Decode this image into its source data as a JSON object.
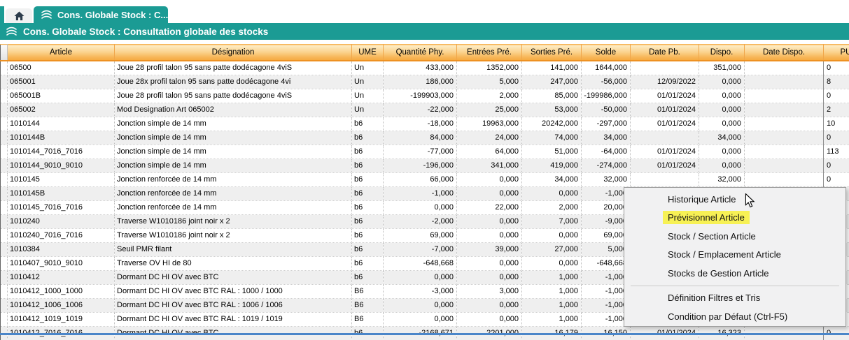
{
  "tab_bar": {
    "home_tab": {
      "icon": "home-icon"
    },
    "active_tab": {
      "icon": "stock-stack-icon",
      "label": "Cons. Globale Stock : C...",
      "close_label": "×"
    }
  },
  "title_bar": {
    "icon": "stock-stack-icon",
    "title": "Cons. Globale Stock : Consultation globale des stocks"
  },
  "table": {
    "columns": [
      {
        "key": "gutter",
        "label": "",
        "align": "left"
      },
      {
        "key": "article",
        "label": "Article",
        "align": "left"
      },
      {
        "key": "designation",
        "label": "Désignation",
        "align": "left"
      },
      {
        "key": "ume",
        "label": "UME",
        "align": "left"
      },
      {
        "key": "qte_phy",
        "label": "Quantité Phy.",
        "align": "right"
      },
      {
        "key": "entrees_pre",
        "label": "Entrées Pré.",
        "align": "right"
      },
      {
        "key": "sorties_pre",
        "label": "Sorties Pré.",
        "align": "right"
      },
      {
        "key": "solde",
        "label": "Solde",
        "align": "right"
      },
      {
        "key": "date_pb",
        "label": "Date Pb.",
        "align": "right"
      },
      {
        "key": "dispo",
        "label": "Dispo.",
        "align": "right"
      },
      {
        "key": "date_dispo",
        "label": "Date Dispo.",
        "align": "right"
      },
      {
        "key": "pu",
        "label": "PU",
        "align": "left"
      }
    ],
    "rows": [
      {
        "article": "06500",
        "designation": "Joue 28 profil talon 95 sans patte dodécagone 4viS",
        "ume": "Un",
        "qte_phy": "433,000",
        "entrees_pre": "1352,000",
        "sorties_pre": "141,000",
        "solde": "1644,000",
        "date_pb": "",
        "dispo": "351,000",
        "date_dispo": "",
        "pu": "0"
      },
      {
        "article": "065001",
        "designation": "Joue 28x profil talon 95 sans patte dodécagone 4vi",
        "ume": "Un",
        "qte_phy": "186,000",
        "entrees_pre": "5,000",
        "sorties_pre": "247,000",
        "solde": "-56,000",
        "date_pb": "12/09/2022",
        "dispo": "0,000",
        "date_dispo": "",
        "pu": "8"
      },
      {
        "article": "065001B",
        "designation": "Joue 28 profil talon 95 sans patte dodécagone 4viS",
        "ume": "Un",
        "qte_phy": "-199903,000",
        "entrees_pre": "2,000",
        "sorties_pre": "85,000",
        "solde": "-199986,000",
        "date_pb": "01/01/2024",
        "dispo": "0,000",
        "date_dispo": "",
        "pu": "0"
      },
      {
        "article": "065002",
        "designation": "Mod Designation Art 065002",
        "ume": "Un",
        "qte_phy": "-22,000",
        "entrees_pre": "25,000",
        "sorties_pre": "53,000",
        "solde": "-50,000",
        "date_pb": "01/01/2024",
        "dispo": "0,000",
        "date_dispo": "",
        "pu": "2"
      },
      {
        "article": "1010144",
        "designation": "Jonction simple de 14 mm",
        "ume": "b6",
        "qte_phy": "-18,000",
        "entrees_pre": "19963,000",
        "sorties_pre": "20242,000",
        "solde": "-297,000",
        "date_pb": "01/01/2024",
        "dispo": "0,000",
        "date_dispo": "",
        "pu": "10"
      },
      {
        "article": "1010144B",
        "designation": "Jonction simple de 14 mm",
        "ume": "b6",
        "qte_phy": "84,000",
        "entrees_pre": "24,000",
        "sorties_pre": "74,000",
        "solde": "34,000",
        "date_pb": "",
        "dispo": "34,000",
        "date_dispo": "",
        "pu": "0"
      },
      {
        "article": "1010144_7016_7016",
        "designation": "Jonction simple de 14 mm",
        "ume": "b6",
        "qte_phy": "-77,000",
        "entrees_pre": "64,000",
        "sorties_pre": "51,000",
        "solde": "-64,000",
        "date_pb": "01/01/2024",
        "dispo": "0,000",
        "date_dispo": "",
        "pu": "113"
      },
      {
        "article": "1010144_9010_9010",
        "designation": "Jonction simple de 14 mm",
        "ume": "b6",
        "qte_phy": "-196,000",
        "entrees_pre": "341,000",
        "sorties_pre": "419,000",
        "solde": "-274,000",
        "date_pb": "01/01/2024",
        "dispo": "0,000",
        "date_dispo": "",
        "pu": "0"
      },
      {
        "article": "1010145",
        "designation": "Jonction renforcée de 14 mm",
        "ume": "b6",
        "qte_phy": "66,000",
        "entrees_pre": "0,000",
        "sorties_pre": "34,000",
        "solde": "32,000",
        "date_pb": "",
        "dispo": "32,000",
        "date_dispo": "",
        "pu": "0"
      },
      {
        "article": "1010145B",
        "designation": "Jonction renforcée de 14 mm",
        "ume": "b6",
        "qte_phy": "-1,000",
        "entrees_pre": "0,000",
        "sorties_pre": "0,000",
        "solde": "-1,000",
        "date_pb": "",
        "dispo": "",
        "date_dispo": "",
        "pu": ""
      },
      {
        "article": "1010145_7016_7016",
        "designation": "Jonction renforcée de 14 mm",
        "ume": "b6",
        "qte_phy": "0,000",
        "entrees_pre": "22,000",
        "sorties_pre": "2,000",
        "solde": "20,000",
        "date_pb": "",
        "dispo": "",
        "date_dispo": "",
        "pu": ""
      },
      {
        "article": "1010240",
        "designation": "Traverse W1010186 joint noir x 2",
        "ume": "b6",
        "qte_phy": "-2,000",
        "entrees_pre": "0,000",
        "sorties_pre": "7,000",
        "solde": "-9,000",
        "date_pb": "",
        "dispo": "",
        "date_dispo": "",
        "pu": ""
      },
      {
        "article": "1010240_7016_7016",
        "designation": "Traverse W1010186 joint noir x 2",
        "ume": "b6",
        "qte_phy": "69,000",
        "entrees_pre": "0,000",
        "sorties_pre": "0,000",
        "solde": "69,000",
        "date_pb": "",
        "dispo": "",
        "date_dispo": "",
        "pu": ""
      },
      {
        "article": "1010384",
        "designation": "Seuil PMR filant",
        "ume": "b6",
        "qte_phy": "-7,000",
        "entrees_pre": "39,000",
        "sorties_pre": "27,000",
        "solde": "5,000",
        "date_pb": "",
        "dispo": "",
        "date_dispo": "",
        "pu": ""
      },
      {
        "article": "1010407_9010_9010",
        "designation": "Traverse OV HI de 80",
        "ume": "b6",
        "qte_phy": "-648,668",
        "entrees_pre": "0,000",
        "sorties_pre": "0,000",
        "solde": "-648,668",
        "date_pb": "",
        "dispo": "",
        "date_dispo": "",
        "pu": ""
      },
      {
        "article": "1010412",
        "designation": "Dormant DC HI OV avec BTC",
        "ume": "b6",
        "qte_phy": "0,000",
        "entrees_pre": "0,000",
        "sorties_pre": "1,000",
        "solde": "-1,000",
        "date_pb": "",
        "dispo": "",
        "date_dispo": "",
        "pu": ""
      },
      {
        "article": "1010412_1000_1000",
        "designation": "Dormant DC HI OV avec BTC RAL : 1000 / 1000",
        "ume": "B6",
        "qte_phy": "-3,000",
        "entrees_pre": "3,000",
        "sorties_pre": "1,000",
        "solde": "-1,000",
        "date_pb": "",
        "dispo": "",
        "date_dispo": "",
        "pu": ""
      },
      {
        "article": "1010412_1006_1006",
        "designation": "Dormant DC HI OV avec BTC RAL : 1006 / 1006",
        "ume": "B6",
        "qte_phy": "0,000",
        "entrees_pre": "0,000",
        "sorties_pre": "1,000",
        "solde": "-1,000",
        "date_pb": "",
        "dispo": "",
        "date_dispo": "",
        "pu": ""
      },
      {
        "article": "1010412_1019_1019",
        "designation": "Dormant DC HI OV avec BTC RAL : 1019 / 1019",
        "ume": "B6",
        "qte_phy": "0,000",
        "entrees_pre": "0,000",
        "sorties_pre": "1,000",
        "solde": "-1,000",
        "date_pb": "",
        "dispo": "",
        "date_dispo": "",
        "pu": ""
      },
      {
        "article": "1010412_7016_7016",
        "designation": "Dormant DC HI OV avec BTC",
        "ume": "b6",
        "qte_phy": "-2168,671",
        "entrees_pre": "2201,000",
        "sorties_pre": "16,179",
        "solde": "16,150",
        "date_pb": "01/01/2024",
        "dispo": "16,323",
        "date_dispo": "",
        "pu": "0"
      }
    ]
  },
  "context_menu": {
    "items": [
      {
        "label": "Historique Article"
      },
      {
        "label": "Prévisionnel Article",
        "highlighted": true
      },
      {
        "label": "Stock / Section Article"
      },
      {
        "label": "Stock / Emplacement Article"
      },
      {
        "label": "Stocks de Gestion Article"
      },
      {
        "separator": true
      },
      {
        "label": "Définition Filtres et Tris"
      },
      {
        "label": "Condition par Défaut (Ctrl-F5)"
      }
    ]
  },
  "colors": {
    "teal": "#1b9b94",
    "header_top": "#fdeec9",
    "header_bottom": "#f5aa41",
    "row_alt": "#efefef",
    "menu_highlight": "#f7f155",
    "bottom_line": "#4b86c9"
  }
}
